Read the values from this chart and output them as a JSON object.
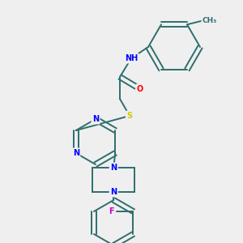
{
  "bg_color": "#efefef",
  "bond_color": "#2d6e6e",
  "atom_colors": {
    "N": "#0000ff",
    "O": "#ff0000",
    "S": "#cccc00",
    "F": "#cc00cc",
    "C": "#2d6e6e",
    "H": "#555555"
  },
  "figsize": [
    3.0,
    3.0
  ],
  "dpi": 100,
  "lw": 1.4,
  "fs": 7.0
}
